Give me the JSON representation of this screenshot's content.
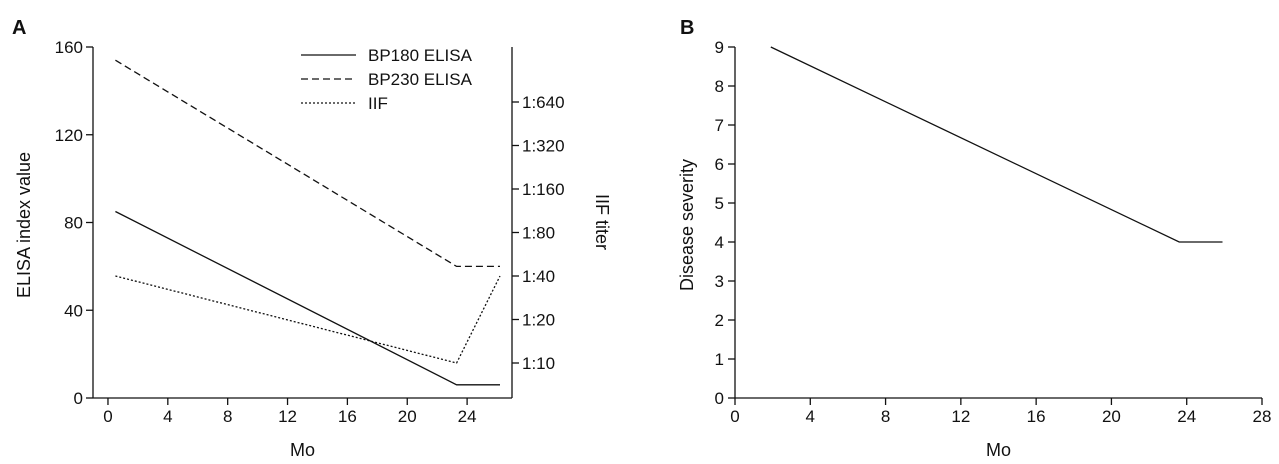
{
  "chart_data": [
    {
      "panel_label": "A",
      "type": "line",
      "xlabel": "Mo",
      "ylabel": "ELISA index value",
      "y2label": "IIF titer",
      "xlim": [
        -1,
        27
      ],
      "ylim": [
        0,
        160
      ],
      "xticks": [
        "0",
        "4",
        "8",
        "12",
        "16",
        "20",
        "24"
      ],
      "yticks": [
        "0",
        "40",
        "80",
        "120",
        "160"
      ],
      "y2ticks": [
        "1:10",
        "1:20",
        "1:40",
        "1:80",
        "1:160",
        "1:320",
        "1:640"
      ],
      "legend_position": "top-right",
      "series": [
        {
          "name": "BP180 ELISA",
          "style": "solid",
          "axis": "left",
          "x": [
            0.5,
            23.3,
            26.2
          ],
          "y": [
            85,
            6,
            6
          ]
        },
        {
          "name": "BP230 ELISA",
          "style": "dashed",
          "axis": "left",
          "x": [
            0.5,
            23.3,
            26.2
          ],
          "y": [
            154,
            60,
            60
          ]
        },
        {
          "name": "IIF",
          "style": "dotted",
          "axis": "right",
          "unit": "titer",
          "x": [
            0.5,
            23.3,
            26.2
          ],
          "y": [
            "1:40",
            "1:10",
            "1:40"
          ],
          "level_index": [
            2.0,
            0.0,
            2.0
          ]
        }
      ]
    },
    {
      "panel_label": "B",
      "type": "line",
      "xlabel": "Mo",
      "ylabel": "Disease severity",
      "xlim": [
        0,
        28
      ],
      "ylim": [
        0,
        9
      ],
      "xticks": [
        "0",
        "4",
        "8",
        "12",
        "16",
        "20",
        "24",
        "28"
      ],
      "yticks": [
        "0",
        "1",
        "2",
        "3",
        "4",
        "5",
        "6",
        "7",
        "8",
        "9"
      ],
      "series": [
        {
          "style": "solid",
          "x": [
            1.9,
            23.6,
            25.9
          ],
          "y": [
            9,
            4,
            4
          ]
        }
      ]
    }
  ]
}
